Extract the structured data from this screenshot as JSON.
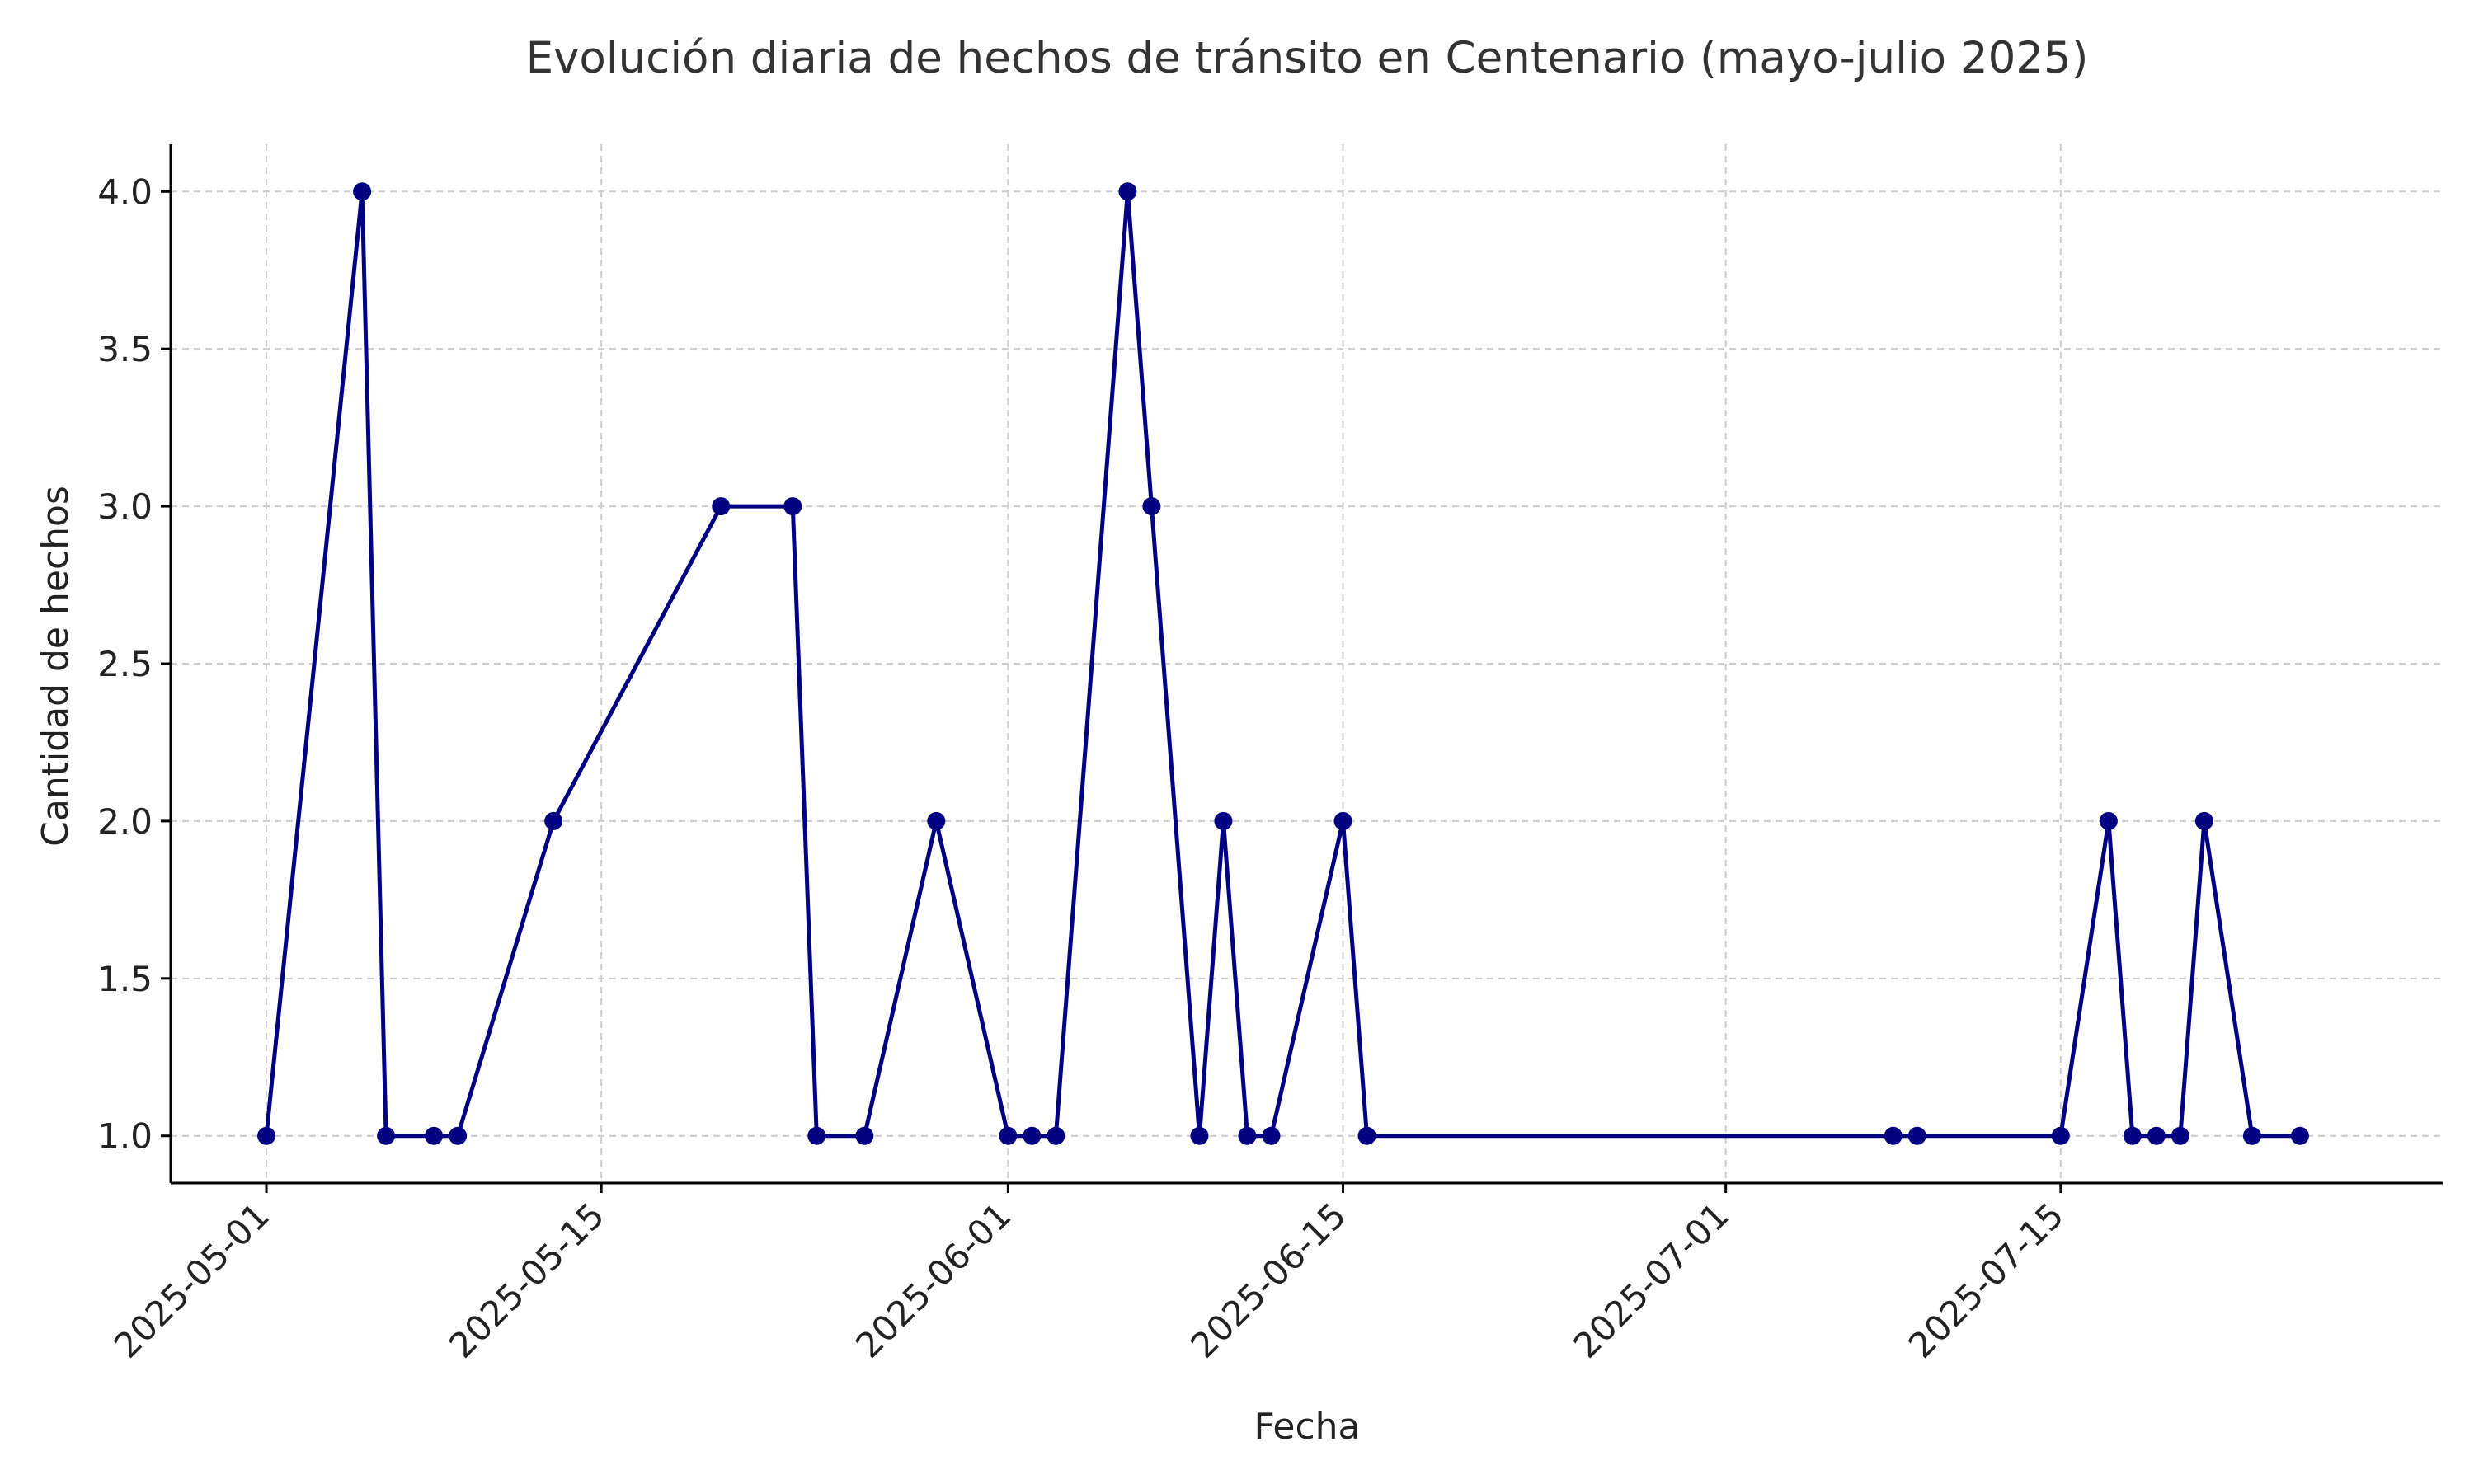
{
  "chart_data": {
    "type": "line",
    "title": "Evolución diaria de hechos de tránsito en Centenario (mayo-julio 2025)",
    "xlabel": "Fecha",
    "ylabel": "Cantidad de hechos",
    "ylim": [
      0.85,
      4.15
    ],
    "xlim": [
      "2025-04-27",
      "2025-07-31"
    ],
    "grid": true,
    "x_ticks": [
      "2025-05-01",
      "2025-05-15",
      "2025-06-01",
      "2025-06-15",
      "2025-07-01",
      "2025-07-15"
    ],
    "y_ticks": [
      "1.0",
      "1.5",
      "2.0",
      "2.5",
      "3.0",
      "3.5",
      "4.0"
    ],
    "colors": {
      "series": "#000080",
      "grid": "#cccccc",
      "axis": "#000000"
    },
    "series": [
      {
        "x": [
          "2025-05-01",
          "2025-05-05",
          "2025-05-06",
          "2025-05-08",
          "2025-05-09",
          "2025-05-13",
          "2025-05-20",
          "2025-05-23",
          "2025-05-24",
          "2025-05-26",
          "2025-05-29",
          "2025-06-01",
          "2025-06-02",
          "2025-06-03",
          "2025-06-06",
          "2025-06-07",
          "2025-06-09",
          "2025-06-10",
          "2025-06-11",
          "2025-06-12",
          "2025-06-15",
          "2025-06-16",
          "2025-07-08",
          "2025-07-09",
          "2025-07-15",
          "2025-07-17",
          "2025-07-18",
          "2025-07-19",
          "2025-07-20",
          "2025-07-21",
          "2025-07-23",
          "2025-07-25"
        ],
        "values": [
          1,
          4,
          1,
          1,
          1,
          2,
          3,
          3,
          1,
          1,
          2,
          1,
          1,
          1,
          4,
          3,
          1,
          2,
          1,
          1,
          2,
          1,
          1,
          1,
          1,
          2,
          1,
          1,
          1,
          2,
          1,
          1
        ]
      }
    ]
  }
}
